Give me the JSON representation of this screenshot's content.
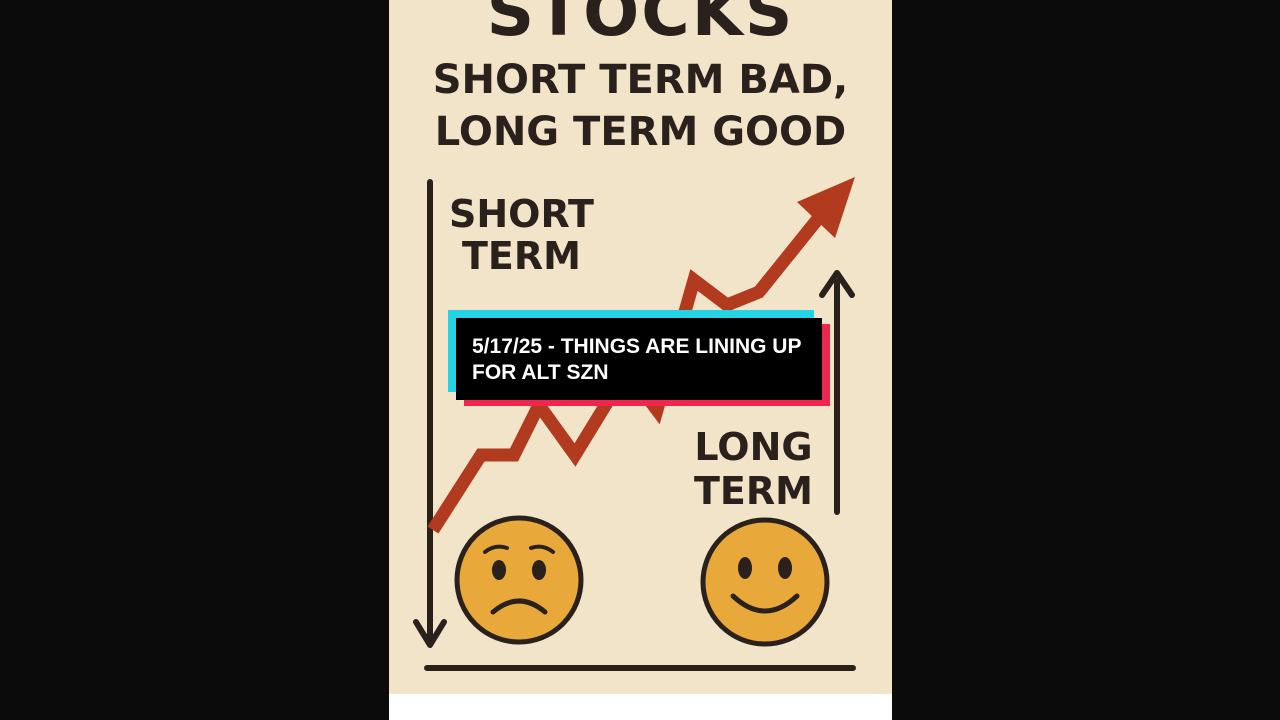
{
  "poster": {
    "title": "STOCKS",
    "subtitle_line1": "SHORT TERM BAD,",
    "subtitle_line2": "LONG TERM GOOD",
    "short_label_line1": "SHORT",
    "short_label_line2": "TERM",
    "long_label_line1": "LONG",
    "long_label_line2": "TERM",
    "sad_face_icon": "sad-face-icon",
    "happy_face_icon": "happy-face-icon"
  },
  "caption": {
    "text": "5/17/25 - THINGS ARE LINING UP FOR ALT SZN"
  },
  "colors": {
    "background": "#0b0b0b",
    "poster": "#f1e4c9",
    "ink": "#2a211c",
    "arrow_red": "#b23a1e",
    "face": "#e8a83a",
    "caption_bg": "#000000",
    "caption_cyan": "#25d3e6",
    "caption_red": "#f0264f"
  }
}
